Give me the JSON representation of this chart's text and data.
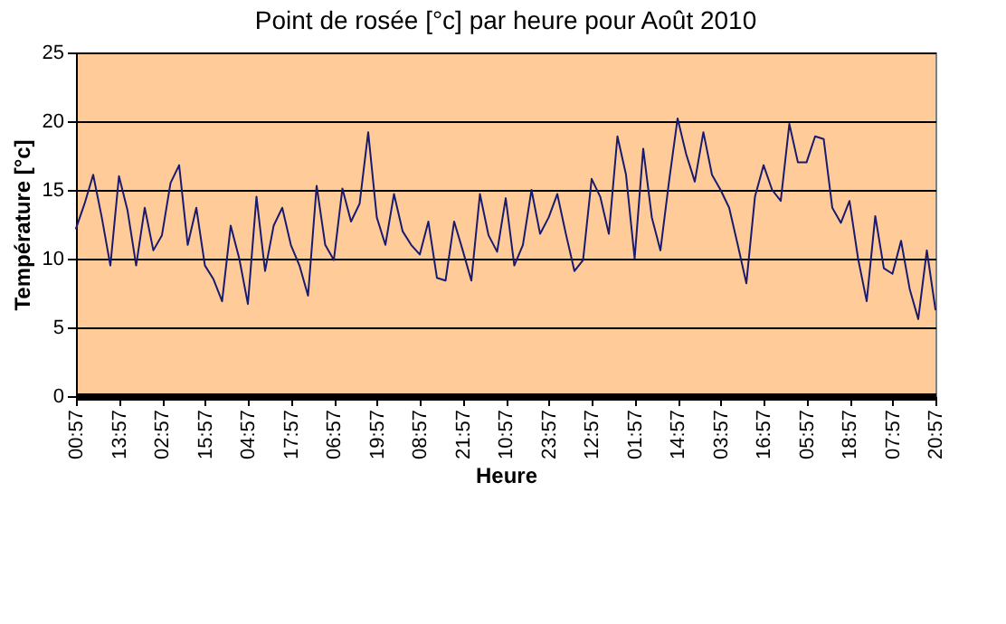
{
  "chart_data": {
    "type": "line",
    "title": "Point de rosée [°c] par heure pour Août 2010",
    "xlabel": "Heure",
    "ylabel": "Température [°c]",
    "categories": [
      "00:57",
      null,
      null,
      null,
      null,
      "13:57",
      null,
      null,
      null,
      null,
      "02:57",
      null,
      null,
      null,
      null,
      "15:57",
      null,
      null,
      null,
      null,
      "04:57",
      null,
      null,
      null,
      null,
      "17:57",
      null,
      null,
      null,
      null,
      "06:57",
      null,
      null,
      null,
      null,
      "19:57",
      null,
      null,
      null,
      null,
      "08:57",
      null,
      null,
      null,
      null,
      "21:57",
      null,
      null,
      null,
      null,
      "10:57",
      null,
      null,
      null,
      null,
      "23:57",
      null,
      null,
      null,
      null,
      "12:57",
      null,
      null,
      null,
      null,
      "01:57",
      null,
      null,
      null,
      null,
      "14:57",
      null,
      null,
      null,
      null,
      "03:57",
      null,
      null,
      null,
      null,
      "16:57",
      null,
      null,
      null,
      null,
      "05:57",
      null,
      null,
      null,
      null,
      "18:57",
      null,
      null,
      null,
      null,
      "07:57",
      null,
      null,
      null,
      null,
      "20:57"
    ],
    "ylim": [
      0,
      25
    ],
    "yticks": [
      0,
      5,
      10,
      15,
      20,
      25
    ],
    "grid": "y",
    "marker": "none",
    "line_style": "solid",
    "series": [
      {
        "color": "#1a1a6e",
        "values": [
          12.2,
          14,
          16.1,
          13,
          9.5,
          16,
          13.5,
          9.5,
          13.7,
          10.6,
          11.7,
          15.5,
          16.8,
          11,
          13.7,
          9.5,
          8.5,
          6.9,
          12.4,
          10,
          6.7,
          14.5,
          9.1,
          12.4,
          13.7,
          11,
          9.5,
          7.3,
          15.3,
          11,
          9.9,
          15.1,
          12.7,
          14,
          19.2,
          13,
          11,
          14.7,
          12,
          11,
          10.3,
          12.7,
          8.6,
          8.4,
          12.7,
          10.6,
          8.4,
          14.7,
          11.7,
          10.5,
          14.4,
          9.5,
          11,
          15,
          11.8,
          13,
          14.7,
          11.8,
          9.1,
          9.9,
          15.8,
          14.5,
          11.8,
          18.9,
          16.1,
          10,
          18,
          13,
          10.6,
          15.6,
          20.2,
          17.6,
          15.6,
          19.2,
          16.1,
          15,
          13.7,
          11,
          8.2,
          14.5,
          16.8,
          15,
          14.2,
          19.8,
          17,
          17,
          18.9,
          18.7,
          13.7,
          12.6,
          14.2,
          10,
          6.9,
          13.1,
          9.3,
          8.9,
          11.3,
          7.8,
          5.6,
          10.6,
          6.3
        ]
      }
    ]
  }
}
